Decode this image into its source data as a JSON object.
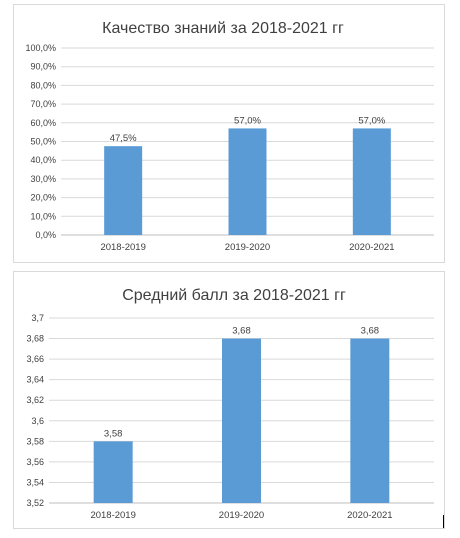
{
  "chart_data": [
    {
      "type": "bar",
      "title": "Качество знаний за 2018-2021 гг",
      "categories": [
        "2018-2019",
        "2019-2020",
        "2020-2021"
      ],
      "values": [
        47.5,
        57.0,
        57.0
      ],
      "data_labels": [
        "47,5%",
        "57,0%",
        "57,0%"
      ],
      "ylim": [
        0,
        100
      ],
      "yticks": [
        0,
        10,
        20,
        30,
        40,
        50,
        60,
        70,
        80,
        90,
        100
      ],
      "ytick_labels": [
        "0,0%",
        "10,0%",
        "20,0%",
        "30,0%",
        "40,0%",
        "50,0%",
        "60,0%",
        "70,0%",
        "80,0%",
        "90,0%",
        "100,0%"
      ],
      "bar_color": "#5b9bd5",
      "grid": true,
      "legend": "none"
    },
    {
      "type": "bar",
      "title": "Средний балл за 2018-2021 гг",
      "categories": [
        "2018-2019",
        "2019-2020",
        "2020-2021"
      ],
      "values": [
        3.58,
        3.68,
        3.68
      ],
      "data_labels": [
        "3,58",
        "3,68",
        "3,68"
      ],
      "ylim": [
        3.52,
        3.7
      ],
      "yticks": [
        3.52,
        3.54,
        3.56,
        3.58,
        3.6,
        3.62,
        3.64,
        3.66,
        3.68,
        3.7
      ],
      "ytick_labels": [
        "3,52",
        "3,54",
        "3,56",
        "3,58",
        "3,6",
        "3,62",
        "3,64",
        "3,66",
        "3,68",
        "3,7"
      ],
      "bar_color": "#5b9bd5",
      "grid": true,
      "legend": "none"
    }
  ]
}
